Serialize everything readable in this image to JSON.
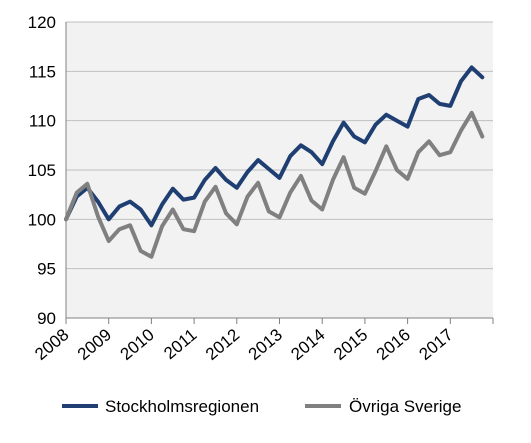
{
  "chart_data": {
    "type": "line",
    "title": "",
    "xlabel": "",
    "ylabel": "",
    "ylim": [
      90,
      120
    ],
    "y_ticks": [
      90,
      95,
      100,
      105,
      110,
      115,
      120
    ],
    "x_tick_labels": [
      "2008",
      "2009",
      "2010",
      "2011",
      "2012",
      "2013",
      "2014",
      "2015",
      "2016",
      "2017"
    ],
    "x_periods_per_year": 4,
    "grid": true,
    "plot_background": "#f2f2f2",
    "legend_position": "bottom",
    "series": [
      {
        "name": "Stockholmsregionen",
        "color": "#1f3f72",
        "values": [
          100.0,
          102.3,
          103.2,
          101.8,
          100.0,
          101.3,
          101.8,
          101.0,
          99.4,
          101.5,
          103.1,
          102.0,
          102.2,
          104.0,
          105.2,
          104.0,
          103.2,
          104.8,
          106.0,
          105.1,
          104.2,
          106.4,
          107.5,
          106.8,
          105.6,
          107.9,
          109.8,
          108.4,
          107.8,
          109.6,
          110.6,
          110.0,
          109.4,
          112.2,
          112.6,
          111.7,
          111.5,
          114.0,
          115.4,
          114.4
        ]
      },
      {
        "name": "Övriga Sverige",
        "color": "#808080",
        "values": [
          100.0,
          102.7,
          103.6,
          100.3,
          97.8,
          99.0,
          99.4,
          96.8,
          96.2,
          99.3,
          101.0,
          99.0,
          98.8,
          101.8,
          103.3,
          100.6,
          99.5,
          102.3,
          103.7,
          100.8,
          100.2,
          102.7,
          104.4,
          101.9,
          101.0,
          104.0,
          106.3,
          103.2,
          102.6,
          104.9,
          107.4,
          105.0,
          104.1,
          106.8,
          107.9,
          106.5,
          106.8,
          109.0,
          110.8,
          108.4
        ]
      }
    ]
  }
}
